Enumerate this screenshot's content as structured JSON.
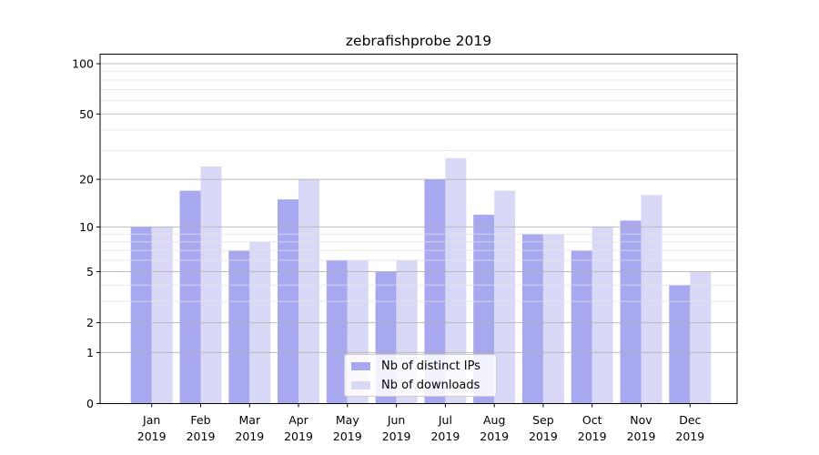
{
  "title": "zebrafishprobe 2019",
  "chart_data": {
    "type": "bar",
    "title": "zebrafishprobe 2019",
    "categories": [
      "Jan 2019",
      "Feb 2019",
      "Mar 2019",
      "Apr 2019",
      "May 2019",
      "Jun 2019",
      "Jul 2019",
      "Aug 2019",
      "Sep 2019",
      "Oct 2019",
      "Nov 2019",
      "Dec 2019"
    ],
    "series": [
      {
        "name": "Nb of distinct IPs",
        "color": "#a8a8f0",
        "values": [
          10,
          17,
          7,
          15,
          6,
          5,
          20,
          12,
          9,
          7,
          11,
          4
        ]
      },
      {
        "name": "Nb of downloads",
        "color": "#d9d9f7",
        "values": [
          10,
          24,
          8,
          20,
          6,
          6,
          27,
          17,
          9,
          10,
          16,
          5
        ]
      }
    ],
    "yscale": "log1p",
    "ylim": [
      0,
      100
    ],
    "ytick_labels": [
      100,
      50,
      20,
      10,
      5,
      2,
      1,
      0
    ],
    "major_gridlines": [
      1,
      2,
      5,
      10,
      20,
      50,
      100
    ],
    "minor_gridlines": [
      3,
      4,
      6,
      7,
      8,
      9,
      30,
      40,
      60,
      70,
      80,
      90
    ],
    "grid": true,
    "legend_position": "lower center",
    "xlabel": "",
    "ylabel": ""
  },
  "colors": {
    "background": "#ffffff",
    "axis": "#000000",
    "grid_major": "#b0b0b0",
    "grid_minor": "#e2e2e2",
    "tick_text": "#000000",
    "legend_border": "#cccccc"
  }
}
